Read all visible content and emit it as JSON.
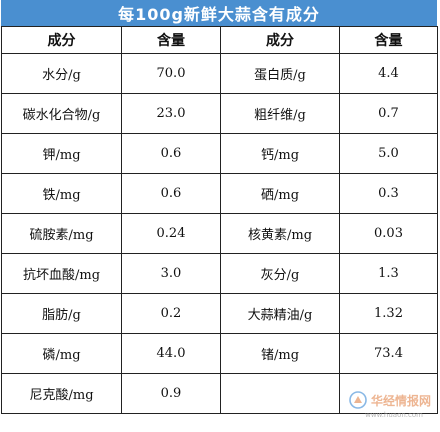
{
  "title": "每100g新鲜大蒜含有成分",
  "headers": [
    "成分",
    "含量",
    "成分",
    "含量"
  ],
  "rows": [
    [
      "水分/g",
      "70.0",
      "蛋白质/g",
      "4.4"
    ],
    [
      "碳水化合物/g",
      "23.0",
      "粗纤维/g",
      "0.7"
    ],
    [
      "钾/mg",
      "0.6",
      "钙/mg",
      "5.0"
    ],
    [
      "铁/mg",
      "0.6",
      "硒/mg",
      "0.3"
    ],
    [
      "硫胺素/mg",
      "0.24",
      "核黄素/mg",
      "0.03"
    ],
    [
      "抗坏血酸/mg",
      "3.0",
      "灰分/g",
      "1.3"
    ],
    [
      "脂肪/g",
      "0.2",
      "大蒜精油/g",
      "1.32"
    ],
    [
      "磷/mg",
      "44.0",
      "锗/mg",
      "73.4"
    ],
    [
      "尼克酸/mg",
      "0.9",
      "",
      ""
    ]
  ],
  "watermark": {
    "text": "华经情报网",
    "url": "www.huaon.com",
    "logo_color": "#2a7fd0"
  }
}
